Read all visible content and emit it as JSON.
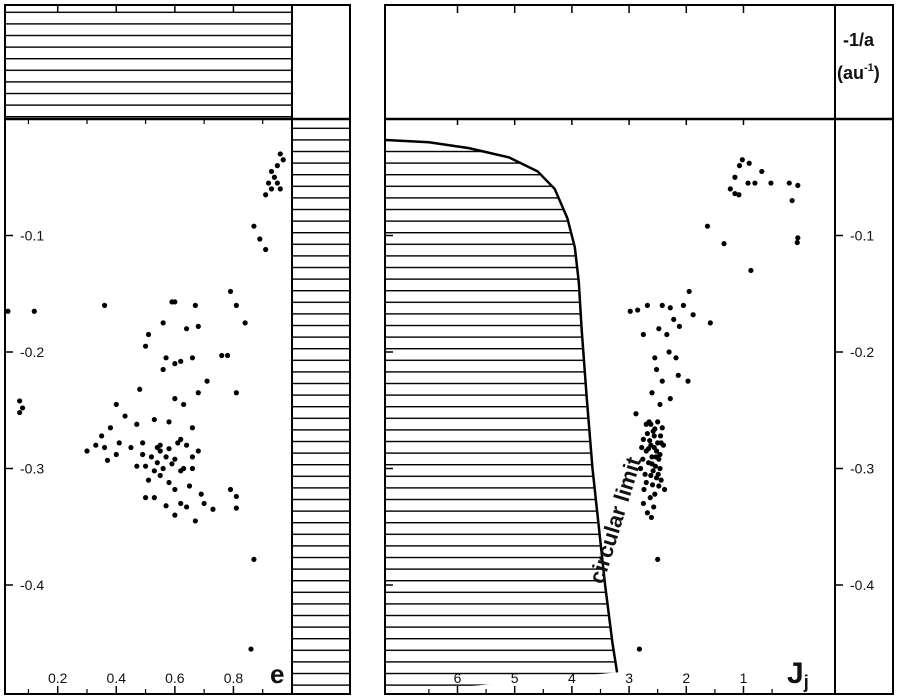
{
  "chart_data": [
    {
      "type": "scatter",
      "xlabel": "e",
      "ylabel": "",
      "xlim": [
        0.02,
        1.0
      ],
      "ylim": [
        -0.475,
        0.025
      ],
      "y_reversed": true,
      "x_ticks": [
        0.2,
        0.4,
        0.6,
        0.8
      ],
      "x_tick_labels": [
        "0.2",
        "0.4",
        "0.6",
        "0.8"
      ],
      "y_ticks": [
        -0.1,
        -0.2,
        -0.3,
        -0.4
      ],
      "y_tick_labels": [
        "-0.1",
        "-0.2",
        "-0.3",
        "-0.4"
      ],
      "shaded_regions": [
        "above -1/a = 0",
        "e > 1"
      ],
      "points": [
        [
          0.96,
          -0.03
        ],
        [
          0.97,
          -0.035
        ],
        [
          0.95,
          -0.04
        ],
        [
          0.93,
          -0.045
        ],
        [
          0.94,
          -0.05
        ],
        [
          0.92,
          -0.055
        ],
        [
          0.96,
          -0.06
        ],
        [
          0.93,
          -0.06
        ],
        [
          0.91,
          -0.065
        ],
        [
          0.95,
          -0.055
        ],
        [
          0.87,
          -0.092
        ],
        [
          0.89,
          -0.103
        ],
        [
          0.91,
          -0.112
        ],
        [
          0.03,
          -0.165
        ],
        [
          0.12,
          -0.165
        ],
        [
          0.36,
          -0.16
        ],
        [
          0.6,
          -0.157
        ],
        [
          0.59,
          -0.157
        ],
        [
          0.67,
          -0.16
        ],
        [
          0.79,
          -0.148
        ],
        [
          0.81,
          -0.16
        ],
        [
          0.56,
          -0.175
        ],
        [
          0.51,
          -0.185
        ],
        [
          0.64,
          -0.18
        ],
        [
          0.68,
          -0.178
        ],
        [
          0.84,
          -0.175
        ],
        [
          0.5,
          -0.195
        ],
        [
          0.57,
          -0.205
        ],
        [
          0.62,
          -0.208
        ],
        [
          0.66,
          -0.205
        ],
        [
          0.6,
          -0.21
        ],
        [
          0.76,
          -0.203
        ],
        [
          0.78,
          -0.203
        ],
        [
          0.56,
          -0.215
        ],
        [
          0.71,
          -0.225
        ],
        [
          0.48,
          -0.232
        ],
        [
          0.68,
          -0.235
        ],
        [
          0.6,
          -0.24
        ],
        [
          0.81,
          -0.235
        ],
        [
          0.63,
          -0.245
        ],
        [
          0.07,
          -0.242
        ],
        [
          0.07,
          -0.252
        ],
        [
          0.08,
          -0.248
        ],
        [
          0.4,
          -0.245
        ],
        [
          0.43,
          -0.255
        ],
        [
          0.38,
          -0.265
        ],
        [
          0.47,
          -0.262
        ],
        [
          0.53,
          -0.258
        ],
        [
          0.58,
          -0.26
        ],
        [
          0.66,
          -0.265
        ],
        [
          0.62,
          -0.275
        ],
        [
          0.35,
          -0.272
        ],
        [
          0.41,
          -0.278
        ],
        [
          0.33,
          -0.28
        ],
        [
          0.3,
          -0.285
        ],
        [
          0.36,
          -0.282
        ],
        [
          0.45,
          -0.282
        ],
        [
          0.49,
          -0.278
        ],
        [
          0.52,
          -0.29
        ],
        [
          0.55,
          -0.285
        ],
        [
          0.58,
          -0.283
        ],
        [
          0.61,
          -0.278
        ],
        [
          0.64,
          -0.28
        ],
        [
          0.68,
          -0.285
        ],
        [
          0.54,
          -0.295
        ],
        [
          0.57,
          -0.29
        ],
        [
          0.6,
          -0.292
        ],
        [
          0.63,
          -0.3
        ],
        [
          0.56,
          -0.3
        ],
        [
          0.53,
          -0.302
        ],
        [
          0.5,
          -0.298
        ],
        [
          0.47,
          -0.298
        ],
        [
          0.49,
          -0.288
        ],
        [
          0.37,
          -0.293
        ],
        [
          0.4,
          -0.288
        ],
        [
          0.51,
          -0.31
        ],
        [
          0.55,
          -0.306
        ],
        [
          0.58,
          -0.312
        ],
        [
          0.62,
          -0.302
        ],
        [
          0.66,
          -0.3
        ],
        [
          0.6,
          -0.318
        ],
        [
          0.65,
          -0.315
        ],
        [
          0.69,
          -0.322
        ],
        [
          0.5,
          -0.325
        ],
        [
          0.53,
          -0.325
        ],
        [
          0.57,
          -0.332
        ],
        [
          0.6,
          -0.34
        ],
        [
          0.62,
          -0.33
        ],
        [
          0.64,
          -0.333
        ],
        [
          0.67,
          -0.345
        ],
        [
          0.7,
          -0.33
        ],
        [
          0.73,
          -0.335
        ],
        [
          0.79,
          -0.318
        ],
        [
          0.81,
          -0.324
        ],
        [
          0.81,
          -0.334
        ],
        [
          0.87,
          -0.378
        ],
        [
          0.86,
          -0.455
        ],
        [
          0.55,
          -0.28
        ],
        [
          0.59,
          -0.296
        ],
        [
          0.66,
          -0.29
        ],
        [
          0.54,
          -0.282
        ]
      ]
    },
    {
      "type": "scatter",
      "xlabel": "Jj",
      "ylabel": "-1/a (au-1)",
      "xlim": [
        7.25,
        -0.6
      ],
      "ylim": [
        -0.475,
        0.025
      ],
      "y_reversed": true,
      "x_ticks": [
        6,
        5,
        4,
        3,
        2,
        1
      ],
      "x_tick_labels": [
        "6",
        "5",
        "4",
        "3",
        "2",
        "1"
      ],
      "y_ticks": [
        -0.1,
        -0.2,
        -0.3,
        -0.4
      ],
      "y_tick_labels": [
        "-0.1",
        "-0.2",
        "-0.3",
        "-0.4"
      ],
      "shaded_regions": [
        "beyond circular limit"
      ],
      "curve_label": "circular limit",
      "circular_limit_curve": [
        [
          7.25,
          -0.018
        ],
        [
          6.5,
          -0.02
        ],
        [
          5.8,
          -0.025
        ],
        [
          5.1,
          -0.033
        ],
        [
          4.6,
          -0.045
        ],
        [
          4.3,
          -0.06
        ],
        [
          4.08,
          -0.085
        ],
        [
          3.95,
          -0.11
        ],
        [
          3.88,
          -0.14
        ],
        [
          3.83,
          -0.18
        ],
        [
          3.74,
          -0.24
        ],
        [
          3.64,
          -0.3
        ],
        [
          3.53,
          -0.35
        ],
        [
          3.42,
          -0.4
        ],
        [
          3.29,
          -0.45
        ],
        [
          3.21,
          -0.475
        ]
      ],
      "points": [
        [
          1.02,
          -0.035
        ],
        [
          1.07,
          -0.04
        ],
        [
          0.9,
          -0.038
        ],
        [
          0.68,
          -0.045
        ],
        [
          0.8,
          -0.055
        ],
        [
          0.92,
          -0.055
        ],
        [
          0.52,
          -0.055
        ],
        [
          1.15,
          -0.05
        ],
        [
          1.23,
          -0.06
        ],
        [
          1.08,
          -0.065
        ],
        [
          1.15,
          -0.064
        ],
        [
          0.2,
          -0.055
        ],
        [
          0.15,
          -0.07
        ],
        [
          0.05,
          -0.057
        ],
        [
          1.63,
          -0.092
        ],
        [
          1.34,
          -0.107
        ],
        [
          0.87,
          -0.13
        ],
        [
          0.05,
          -0.102
        ],
        [
          0.06,
          -0.106
        ],
        [
          2.98,
          -0.165
        ],
        [
          2.85,
          -0.164
        ],
        [
          2.68,
          -0.16
        ],
        [
          2.42,
          -0.16
        ],
        [
          2.28,
          -0.162
        ],
        [
          1.95,
          -0.148
        ],
        [
          2.05,
          -0.16
        ],
        [
          2.22,
          -0.172
        ],
        [
          2.12,
          -0.178
        ],
        [
          1.58,
          -0.175
        ],
        [
          1.88,
          -0.168
        ],
        [
          2.48,
          -0.18
        ],
        [
          2.34,
          -0.185
        ],
        [
          2.75,
          -0.185
        ],
        [
          2.18,
          -0.205
        ],
        [
          2.3,
          -0.2
        ],
        [
          2.14,
          -0.22
        ],
        [
          2.55,
          -0.205
        ],
        [
          2.42,
          -0.225
        ],
        [
          2.46,
          -0.245
        ],
        [
          2.28,
          -0.24
        ],
        [
          2.6,
          -0.235
        ],
        [
          1.97,
          -0.225
        ],
        [
          2.52,
          -0.215
        ],
        [
          2.88,
          -0.253
        ],
        [
          2.7,
          -0.262
        ],
        [
          2.58,
          -0.268
        ],
        [
          2.5,
          -0.26
        ],
        [
          2.68,
          -0.27
        ],
        [
          2.75,
          -0.275
        ],
        [
          2.62,
          -0.28
        ],
        [
          2.56,
          -0.282
        ],
        [
          2.52,
          -0.285
        ],
        [
          2.6,
          -0.29
        ],
        [
          2.46,
          -0.288
        ],
        [
          2.66,
          -0.295
        ],
        [
          2.7,
          -0.285
        ],
        [
          2.76,
          -0.292
        ],
        [
          2.54,
          -0.298
        ],
        [
          2.58,
          -0.302
        ],
        [
          2.62,
          -0.306
        ],
        [
          2.48,
          -0.292
        ],
        [
          2.44,
          -0.278
        ],
        [
          2.4,
          -0.28
        ],
        [
          2.5,
          -0.278
        ],
        [
          2.64,
          -0.276
        ],
        [
          2.56,
          -0.272
        ],
        [
          2.72,
          -0.305
        ],
        [
          2.74,
          -0.318
        ],
        [
          2.63,
          -0.325
        ],
        [
          2.57,
          -0.333
        ],
        [
          2.68,
          -0.338
        ],
        [
          2.61,
          -0.342
        ],
        [
          2.55,
          -0.322
        ],
        [
          2.48,
          -0.315
        ],
        [
          2.52,
          -0.308
        ],
        [
          2.46,
          -0.3
        ],
        [
          2.78,
          -0.282
        ],
        [
          2.8,
          -0.3
        ],
        [
          2.42,
          -0.265
        ],
        [
          2.45,
          -0.272
        ],
        [
          2.62,
          -0.262
        ],
        [
          2.55,
          -0.266
        ],
        [
          2.5,
          -0.378
        ],
        [
          2.82,
          -0.455
        ],
        [
          2.66,
          -0.283
        ],
        [
          2.6,
          -0.296
        ],
        [
          2.53,
          -0.29
        ],
        [
          2.7,
          -0.312
        ],
        [
          2.49,
          -0.305
        ],
        [
          2.44,
          -0.31
        ],
        [
          2.38,
          -0.318
        ],
        [
          2.75,
          -0.33
        ],
        [
          2.59,
          -0.314
        ],
        [
          2.65,
          -0.26
        ]
      ]
    }
  ]
}
